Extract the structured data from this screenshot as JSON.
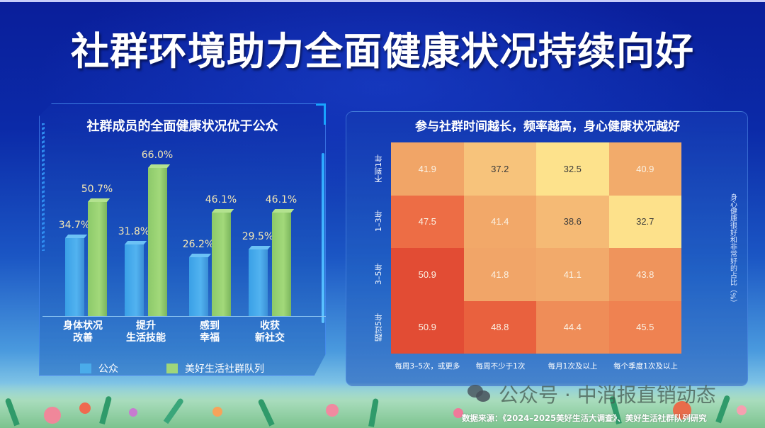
{
  "title": "社群环境助力全面健康状况持续向好",
  "left_panel": {
    "title": "社群成员的全面健康状况优于公众",
    "legend": [
      {
        "label": "公众",
        "color": "#4aacea"
      },
      {
        "label": "美好生活社群队列",
        "color": "#9fd67a"
      }
    ],
    "categories": [
      {
        "line1": "身体状况",
        "line2": "改善"
      },
      {
        "line1": "提升",
        "line2": "生活技能"
      },
      {
        "line1": "感到",
        "line2": "幸福"
      },
      {
        "line1": "收获",
        "line2": "新社交"
      }
    ],
    "value_labels": {
      "public": [
        "34.7%",
        "31.8%",
        "26.2%",
        "29.5%"
      ],
      "community": [
        "50.7%",
        "66.0%",
        "46.1%",
        "46.1%"
      ]
    }
  },
  "right_panel": {
    "title": "参与社群时间越长，频率越高，身心健康状况越好",
    "row_labels": [
      "不到1年",
      "1–3年",
      "3–5年",
      "超过5年"
    ],
    "col_labels": [
      "每周3–5次，或更多",
      "每周不少于1次",
      "每月1次及以上",
      "每个季度1次及以上"
    ],
    "colorbar_label": "身心健康很好和非常好的占比（%）",
    "cells": [
      [
        "41.9",
        "37.2",
        "32.5",
        "40.9"
      ],
      [
        "47.5",
        "41.4",
        "38.6",
        "32.7"
      ],
      [
        "50.9",
        "41.8",
        "41.1",
        "43.8"
      ],
      [
        "50.9",
        "48.8",
        "44.4",
        "45.5"
      ]
    ]
  },
  "footer": {
    "watermark": "公众号 · 中消报直销动态",
    "source": "数据来源：《2024–2025美好生活大调查》、美好生活社群队列研究"
  },
  "chart_data": [
    {
      "type": "bar",
      "title": "社群成员的全面健康状况优于公众",
      "categories": [
        "身体状况改善",
        "提升生活技能",
        "感到幸福",
        "收获新社交"
      ],
      "series": [
        {
          "name": "公众",
          "values": [
            34.7,
            31.8,
            26.2,
            29.5
          ]
        },
        {
          "name": "美好生活社群队列",
          "values": [
            50.7,
            66.0,
            46.1,
            46.1
          ]
        }
      ],
      "xlabel": "",
      "ylabel": "%",
      "ylim": [
        0,
        70
      ],
      "grid": false,
      "legend_position": "bottom"
    },
    {
      "type": "heatmap",
      "title": "参与社群时间越长，频率越高，身心健康状况越好",
      "x": [
        "每周3–5次，或更多",
        "每周不少于1次",
        "每月1次及以上",
        "每个季度1次及以上"
      ],
      "y": [
        "不到1年",
        "1–3年",
        "3–5年",
        "超过5年"
      ],
      "values": [
        [
          41.9,
          37.2,
          32.5,
          40.9
        ],
        [
          47.5,
          41.4,
          38.6,
          32.7
        ],
        [
          50.9,
          41.8,
          41.1,
          43.8
        ],
        [
          50.9,
          48.8,
          44.4,
          45.5
        ]
      ],
      "colorbar_label": "身心健康很好和非常好的占比（%）",
      "colormap": "yellow-orange-red"
    }
  ]
}
